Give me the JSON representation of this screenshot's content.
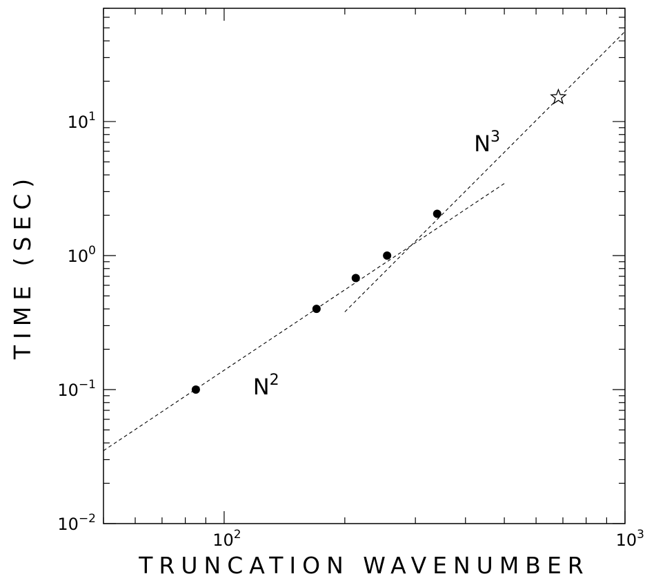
{
  "chart_data": {
    "type": "scatter",
    "xlabel": "TRUNCATION WAVENUMBER",
    "ylabel": "TIME (SEC)",
    "xscale": "log",
    "yscale": "log",
    "xlim": [
      50,
      1000
    ],
    "ylim": [
      0.01,
      70
    ],
    "grid": false,
    "x_ticks": [
      {
        "value": 100,
        "base": "10",
        "exp": "2"
      },
      {
        "value": 1000,
        "base": "10",
        "exp": "3"
      }
    ],
    "y_ticks": [
      {
        "value": 0.01,
        "base": "10",
        "exp": "−2"
      },
      {
        "value": 0.1,
        "base": "10",
        "exp": "−1"
      },
      {
        "value": 1,
        "base": "10",
        "exp": "0"
      },
      {
        "value": 10,
        "base": "10",
        "exp": "1"
      }
    ],
    "series": [
      {
        "marker": "filled-circle",
        "x": [
          85,
          170,
          213,
          255,
          340
        ],
        "y": [
          0.1,
          0.4,
          0.68,
          1.0,
          2.05
        ]
      },
      {
        "marker": "star",
        "x": [
          682
        ],
        "y": [
          15.2
        ]
      }
    ],
    "reference_lines": [
      {
        "label_base": "N",
        "label_exp": "2",
        "style": "dashed",
        "from": [
          50,
          0.035
        ],
        "to": [
          500,
          3.45
        ]
      },
      {
        "label_base": "N",
        "label_exp": "3",
        "style": "dashed",
        "from": [
          200,
          0.38
        ],
        "to": [
          1000,
          47
        ]
      }
    ],
    "annotations": [
      {
        "base": "N",
        "exp": "2",
        "x": 118,
        "y": 0.092
      },
      {
        "base": "N",
        "exp": "3",
        "x": 420,
        "y": 6.0
      }
    ]
  }
}
